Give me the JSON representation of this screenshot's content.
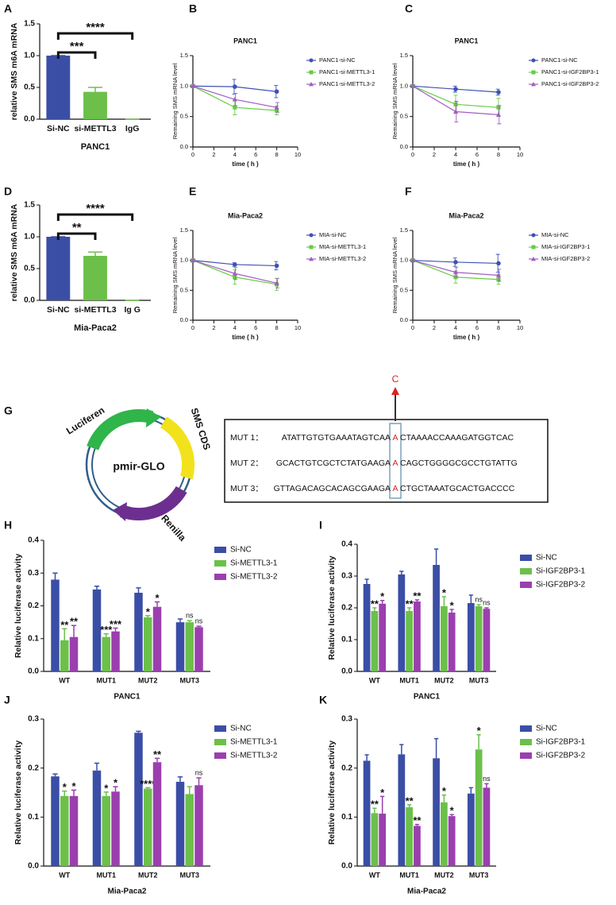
{
  "chart_data": [
    {
      "type": "bar",
      "panel": "A",
      "ylabel": "relative SMS m6A mRNA",
      "xlabel": "PANC1",
      "categories": [
        "Si-NC",
        "si-METTL3",
        "IgG"
      ],
      "values": [
        1.0,
        0.43,
        0
      ],
      "errors": [
        0,
        0.07,
        0
      ],
      "colors": [
        "#3b4ea6",
        "#6cc04a",
        "#6cc04a"
      ],
      "ylim": [
        0,
        1.5
      ],
      "yticks": [
        {
          "value": 0,
          "label": "0.0"
        },
        0.5,
        {
          "value": 1,
          "label": "1.0"
        },
        1.5
      ],
      "comparisons": [
        {
          "groups": [
            "Si-NC",
            "si-METTL3"
          ],
          "label": "***"
        },
        {
          "groups": [
            "Si-NC",
            "IgG"
          ],
          "label": "****"
        }
      ]
    },
    {
      "type": "line",
      "panel": "B",
      "title": "PANC1",
      "ylabel": "Remaining SMS mRNA level",
      "xlabel": "time ( h )",
      "x": [
        0,
        4,
        8
      ],
      "xlim": [
        0,
        10
      ],
      "xticks": [
        0,
        2,
        4,
        6,
        8,
        10
      ],
      "ylim": [
        0,
        1.5
      ],
      "yticks": [
        {
          "value": 0,
          "label": "0.0"
        },
        0.5,
        {
          "value": 1,
          "label": "1.0"
        },
        1.5
      ],
      "series": [
        {
          "name": "PANC1-si-NC",
          "color": "#3f51b5",
          "marker": "circle",
          "values": [
            1,
            0.99,
            0.91
          ],
          "errors": [
            0.02,
            0.12,
            0.1
          ]
        },
        {
          "name": "PANC1-si-METTL3-1",
          "color": "#66cc44",
          "marker": "square",
          "values": [
            1,
            0.65,
            0.6
          ],
          "errors": [
            0.02,
            0.12,
            0.07
          ]
        },
        {
          "name": "PANC1-si-METTL3-2",
          "color": "#a35cc4",
          "marker": "triangle",
          "values": [
            1,
            0.78,
            0.65
          ],
          "errors": [
            0.02,
            0.1,
            0.08
          ]
        }
      ]
    },
    {
      "type": "line",
      "panel": "C",
      "title": "PANC1",
      "ylabel": "Remaining SMS mRNA level",
      "xlabel": "time ( h )",
      "x": [
        0,
        4,
        8
      ],
      "xlim": [
        0,
        10
      ],
      "xticks": [
        0,
        2,
        4,
        6,
        8,
        10
      ],
      "ylim": [
        0,
        1.5
      ],
      "yticks": [
        {
          "value": 0,
          "label": "0.0"
        },
        0.5,
        {
          "value": 1,
          "label": "1.0"
        },
        1.5
      ],
      "series": [
        {
          "name": "PANC1-si-NC",
          "color": "#3f51b5",
          "marker": "circle",
          "values": [
            1,
            0.95,
            0.9
          ],
          "errors": [
            0.02,
            0.05,
            0.05
          ]
        },
        {
          "name": "PANC1-si-IGF2BP3-1",
          "color": "#66cc44",
          "marker": "square",
          "values": [
            1,
            0.7,
            0.65
          ],
          "errors": [
            0.02,
            0.15,
            0.15
          ]
        },
        {
          "name": "PANC1-si-IGF2BP3-2",
          "color": "#a35cc4",
          "marker": "triangle",
          "values": [
            1,
            0.58,
            0.53
          ],
          "errors": [
            0.02,
            0.17,
            0.15
          ]
        }
      ]
    },
    {
      "type": "bar",
      "panel": "D",
      "ylabel": "relative SMS m6A mRNA",
      "xlabel": "Mia-Paca2",
      "categories": [
        "Si-NC",
        "si-METTL3",
        "Ig G"
      ],
      "values": [
        1.0,
        0.7,
        0
      ],
      "errors": [
        0,
        0.06,
        0
      ],
      "colors": [
        "#3b4ea6",
        "#6cc04a",
        "#6cc04a"
      ],
      "ylim": [
        0,
        1.5
      ],
      "yticks": [
        {
          "value": 0,
          "label": "0.0"
        },
        0.5,
        {
          "value": 1,
          "label": "1.0"
        },
        1.5
      ],
      "comparisons": [
        {
          "groups": [
            "Si-NC",
            "si-METTL3"
          ],
          "label": "**"
        },
        {
          "groups": [
            "Si-NC",
            "Ig G"
          ],
          "label": "****"
        }
      ]
    },
    {
      "type": "line",
      "panel": "E",
      "title": "Mia-Paca2",
      "ylabel": "Remaining SMS mRNA level",
      "xlabel": "time ( h )",
      "x": [
        0,
        4,
        8
      ],
      "xlim": [
        0,
        10
      ],
      "xticks": [
        0,
        2,
        4,
        6,
        8,
        10
      ],
      "ylim": [
        0,
        1.5
      ],
      "yticks": [
        {
          "value": 0,
          "label": "0.0"
        },
        0.5,
        {
          "value": 1,
          "label": "1.0"
        },
        1.5
      ],
      "series": [
        {
          "name": "MIA-si-NC",
          "color": "#3f51b5",
          "marker": "circle",
          "values": [
            1,
            0.93,
            0.91
          ],
          "errors": [
            0.02,
            0.03,
            0.07
          ]
        },
        {
          "name": "MIA-si-METTL3-1",
          "color": "#66cc44",
          "marker": "square",
          "values": [
            1,
            0.72,
            0.6
          ],
          "errors": [
            0.02,
            0.12,
            0.1
          ]
        },
        {
          "name": "MIA-si-METTL3-2",
          "color": "#a35cc4",
          "marker": "triangle",
          "values": [
            1,
            0.78,
            0.62
          ],
          "errors": [
            0.02,
            0.1,
            0.08
          ]
        }
      ]
    },
    {
      "type": "line",
      "panel": "F",
      "title": "Mia-Paca2",
      "ylabel": "Remaining SMS mRNA level",
      "xlabel": "time ( h )",
      "x": [
        0,
        4,
        8
      ],
      "xlim": [
        0,
        10
      ],
      "xticks": [
        0,
        2,
        4,
        6,
        8,
        10
      ],
      "ylim": [
        0,
        1.5
      ],
      "yticks": [
        {
          "value": 0,
          "label": "0.0"
        },
        0.5,
        {
          "value": 1,
          "label": "1.0"
        },
        1.5
      ],
      "series": [
        {
          "name": "MIA-si-NC",
          "color": "#3f51b5",
          "marker": "circle",
          "values": [
            1,
            0.97,
            0.95
          ],
          "errors": [
            0.02,
            0.07,
            0.15
          ]
        },
        {
          "name": "MIA-si-IGF2BP3-1",
          "color": "#66cc44",
          "marker": "square",
          "values": [
            1,
            0.72,
            0.68
          ],
          "errors": [
            0.02,
            0.1,
            0.08
          ]
        },
        {
          "name": "MIA-si-IGF2BP3-2",
          "color": "#a35cc4",
          "marker": "triangle",
          "values": [
            1,
            0.8,
            0.75
          ],
          "errors": [
            0.02,
            0.08,
            0.1
          ]
        }
      ]
    },
    {
      "type": "bar",
      "panel": "H",
      "ylabel": "Relative luciferase activity",
      "xlabel": "PANC1",
      "categories": [
        "WT",
        "MUT1",
        "MUT2",
        "MUT3"
      ],
      "ylim": [
        0,
        0.4
      ],
      "yticks": [
        {
          "value": 0,
          "label": "0.0"
        },
        0.1,
        0.2,
        0.3,
        0.4
      ],
      "series": [
        {
          "name": "Si-NC",
          "color": "#3b4ea6",
          "values": [
            0.28,
            0.25,
            0.24,
            0.15
          ],
          "errors": [
            0.02,
            0.01,
            0.015,
            0.01
          ]
        },
        {
          "name": "Si-METTL3-1",
          "color": "#6cc04a",
          "values": [
            0.095,
            0.105,
            0.165,
            0.15
          ],
          "errors": [
            0.035,
            0.01,
            0.005,
            0.005
          ],
          "annotations": [
            "**",
            "***",
            "*",
            "ns"
          ]
        },
        {
          "name": "Si-METTL3-2",
          "color": "#9b3fae",
          "values": [
            0.105,
            0.122,
            0.197,
            0.135
          ],
          "errors": [
            0.035,
            0.01,
            0.015,
            0.003
          ],
          "annotations": [
            "**",
            "***",
            "*",
            "ns"
          ]
        }
      ]
    },
    {
      "type": "bar",
      "panel": "I",
      "ylabel": "Relative luciferase activity",
      "xlabel": "PANC1",
      "categories": [
        "WT",
        "MUT1",
        "MUT2",
        "MUT3"
      ],
      "ylim": [
        0,
        0.4
      ],
      "yticks": [
        {
          "value": 0,
          "label": "0.0"
        },
        0.1,
        0.2,
        0.3,
        0.4
      ],
      "series": [
        {
          "name": "Si-NC",
          "color": "#3b4ea6",
          "values": [
            0.275,
            0.305,
            0.335,
            0.215
          ],
          "errors": [
            0.015,
            0.01,
            0.05,
            0.025
          ]
        },
        {
          "name": "Si-IGF2BP3-1",
          "color": "#6cc04a",
          "values": [
            0.19,
            0.19,
            0.205,
            0.205
          ],
          "errors": [
            0.01,
            0.01,
            0.03,
            0.005
          ],
          "annotations": [
            "**",
            "**",
            "*",
            "ns"
          ]
        },
        {
          "name": "Si-IGF2BP3-2",
          "color": "#9b3fae",
          "values": [
            0.213,
            0.22,
            0.185,
            0.197
          ],
          "errors": [
            0.01,
            0.005,
            0.01,
            0.003
          ],
          "annotations": [
            "*",
            "**",
            "*",
            "ns"
          ]
        }
      ]
    },
    {
      "type": "bar",
      "panel": "J",
      "ylabel": "Relative luciferase activity",
      "xlabel": "Mia-Paca2",
      "categories": [
        "WT",
        "MUT1",
        "MUT2",
        "MUT3"
      ],
      "ylim": [
        0,
        0.3
      ],
      "yticks": [
        {
          "value": 0,
          "label": "0.0"
        },
        0.1,
        0.2,
        0.3
      ],
      "series": [
        {
          "name": "Si-NC",
          "color": "#3b4ea6",
          "values": [
            0.183,
            0.195,
            0.272,
            0.172
          ],
          "errors": [
            0.005,
            0.015,
            0.003,
            0.01
          ]
        },
        {
          "name": "Si-METTL3-1",
          "color": "#6cc04a",
          "values": [
            0.143,
            0.143,
            0.158,
            0.147
          ],
          "errors": [
            0.01,
            0.008,
            0.002,
            0.015
          ],
          "annotations": [
            "*",
            "*",
            "****",
            null
          ]
        },
        {
          "name": "Si-METTL3-2",
          "color": "#9b3fae",
          "values": [
            0.143,
            0.152,
            0.212,
            0.165
          ],
          "errors": [
            0.012,
            0.01,
            0.008,
            0.015
          ],
          "annotations": [
            "*",
            "*",
            "**",
            "ns"
          ]
        }
      ]
    },
    {
      "type": "bar",
      "panel": "K",
      "ylabel": "Relative luciferase activity",
      "xlabel": "Mia-Paca2",
      "categories": [
        "WT",
        "MUT1",
        "MUT2",
        "MUT3"
      ],
      "ylim": [
        0,
        0.3
      ],
      "yticks": [
        {
          "value": 0,
          "label": "0.0"
        },
        0.1,
        0.2,
        0.3
      ],
      "series": [
        {
          "name": "Si-NC",
          "color": "#3b4ea6",
          "values": [
            0.215,
            0.228,
            0.22,
            0.148
          ],
          "errors": [
            0.012,
            0.02,
            0.04,
            0.012
          ]
        },
        {
          "name": "Si-IGF2BP3-1",
          "color": "#6cc04a",
          "values": [
            0.108,
            0.12,
            0.13,
            0.238
          ],
          "errors": [
            0.01,
            0.005,
            0.015,
            0.03
          ],
          "annotations": [
            "**",
            "**",
            "*",
            "*"
          ]
        },
        {
          "name": "Si-IGF2BP3-2",
          "color": "#9b3fae",
          "values": [
            0.107,
            0.082,
            0.102,
            0.16
          ],
          "errors": [
            0.035,
            0.003,
            0.003,
            0.008
          ],
          "annotations": [
            "*",
            "**",
            "*",
            "ns"
          ]
        }
      ]
    }
  ],
  "diagram": {
    "panel": "G",
    "plasmid": "pmir-GLO",
    "features": [
      "Luciferen",
      "SMS CDS",
      "Renilla"
    ],
    "mutation_base": "C",
    "sequences": [
      {
        "label": "MUT 1：",
        "before": "ATATTGTGTGAAATAGTCAA",
        "site": "A",
        "after": "CTAAAACCAAAGATGGTCAC"
      },
      {
        "label": "MUT 2：",
        "before": "GCACTGTCGCTCTATGAAGA",
        "site": "A",
        "after": "CAGCTGGGGCGCCTGTATTG"
      },
      {
        "label": "MUT 3：",
        "before": "GTTAGACAGCACAGCGAAGA",
        "site": "A",
        "after": "CTGCTAAATGCACTGACCCC"
      }
    ]
  }
}
